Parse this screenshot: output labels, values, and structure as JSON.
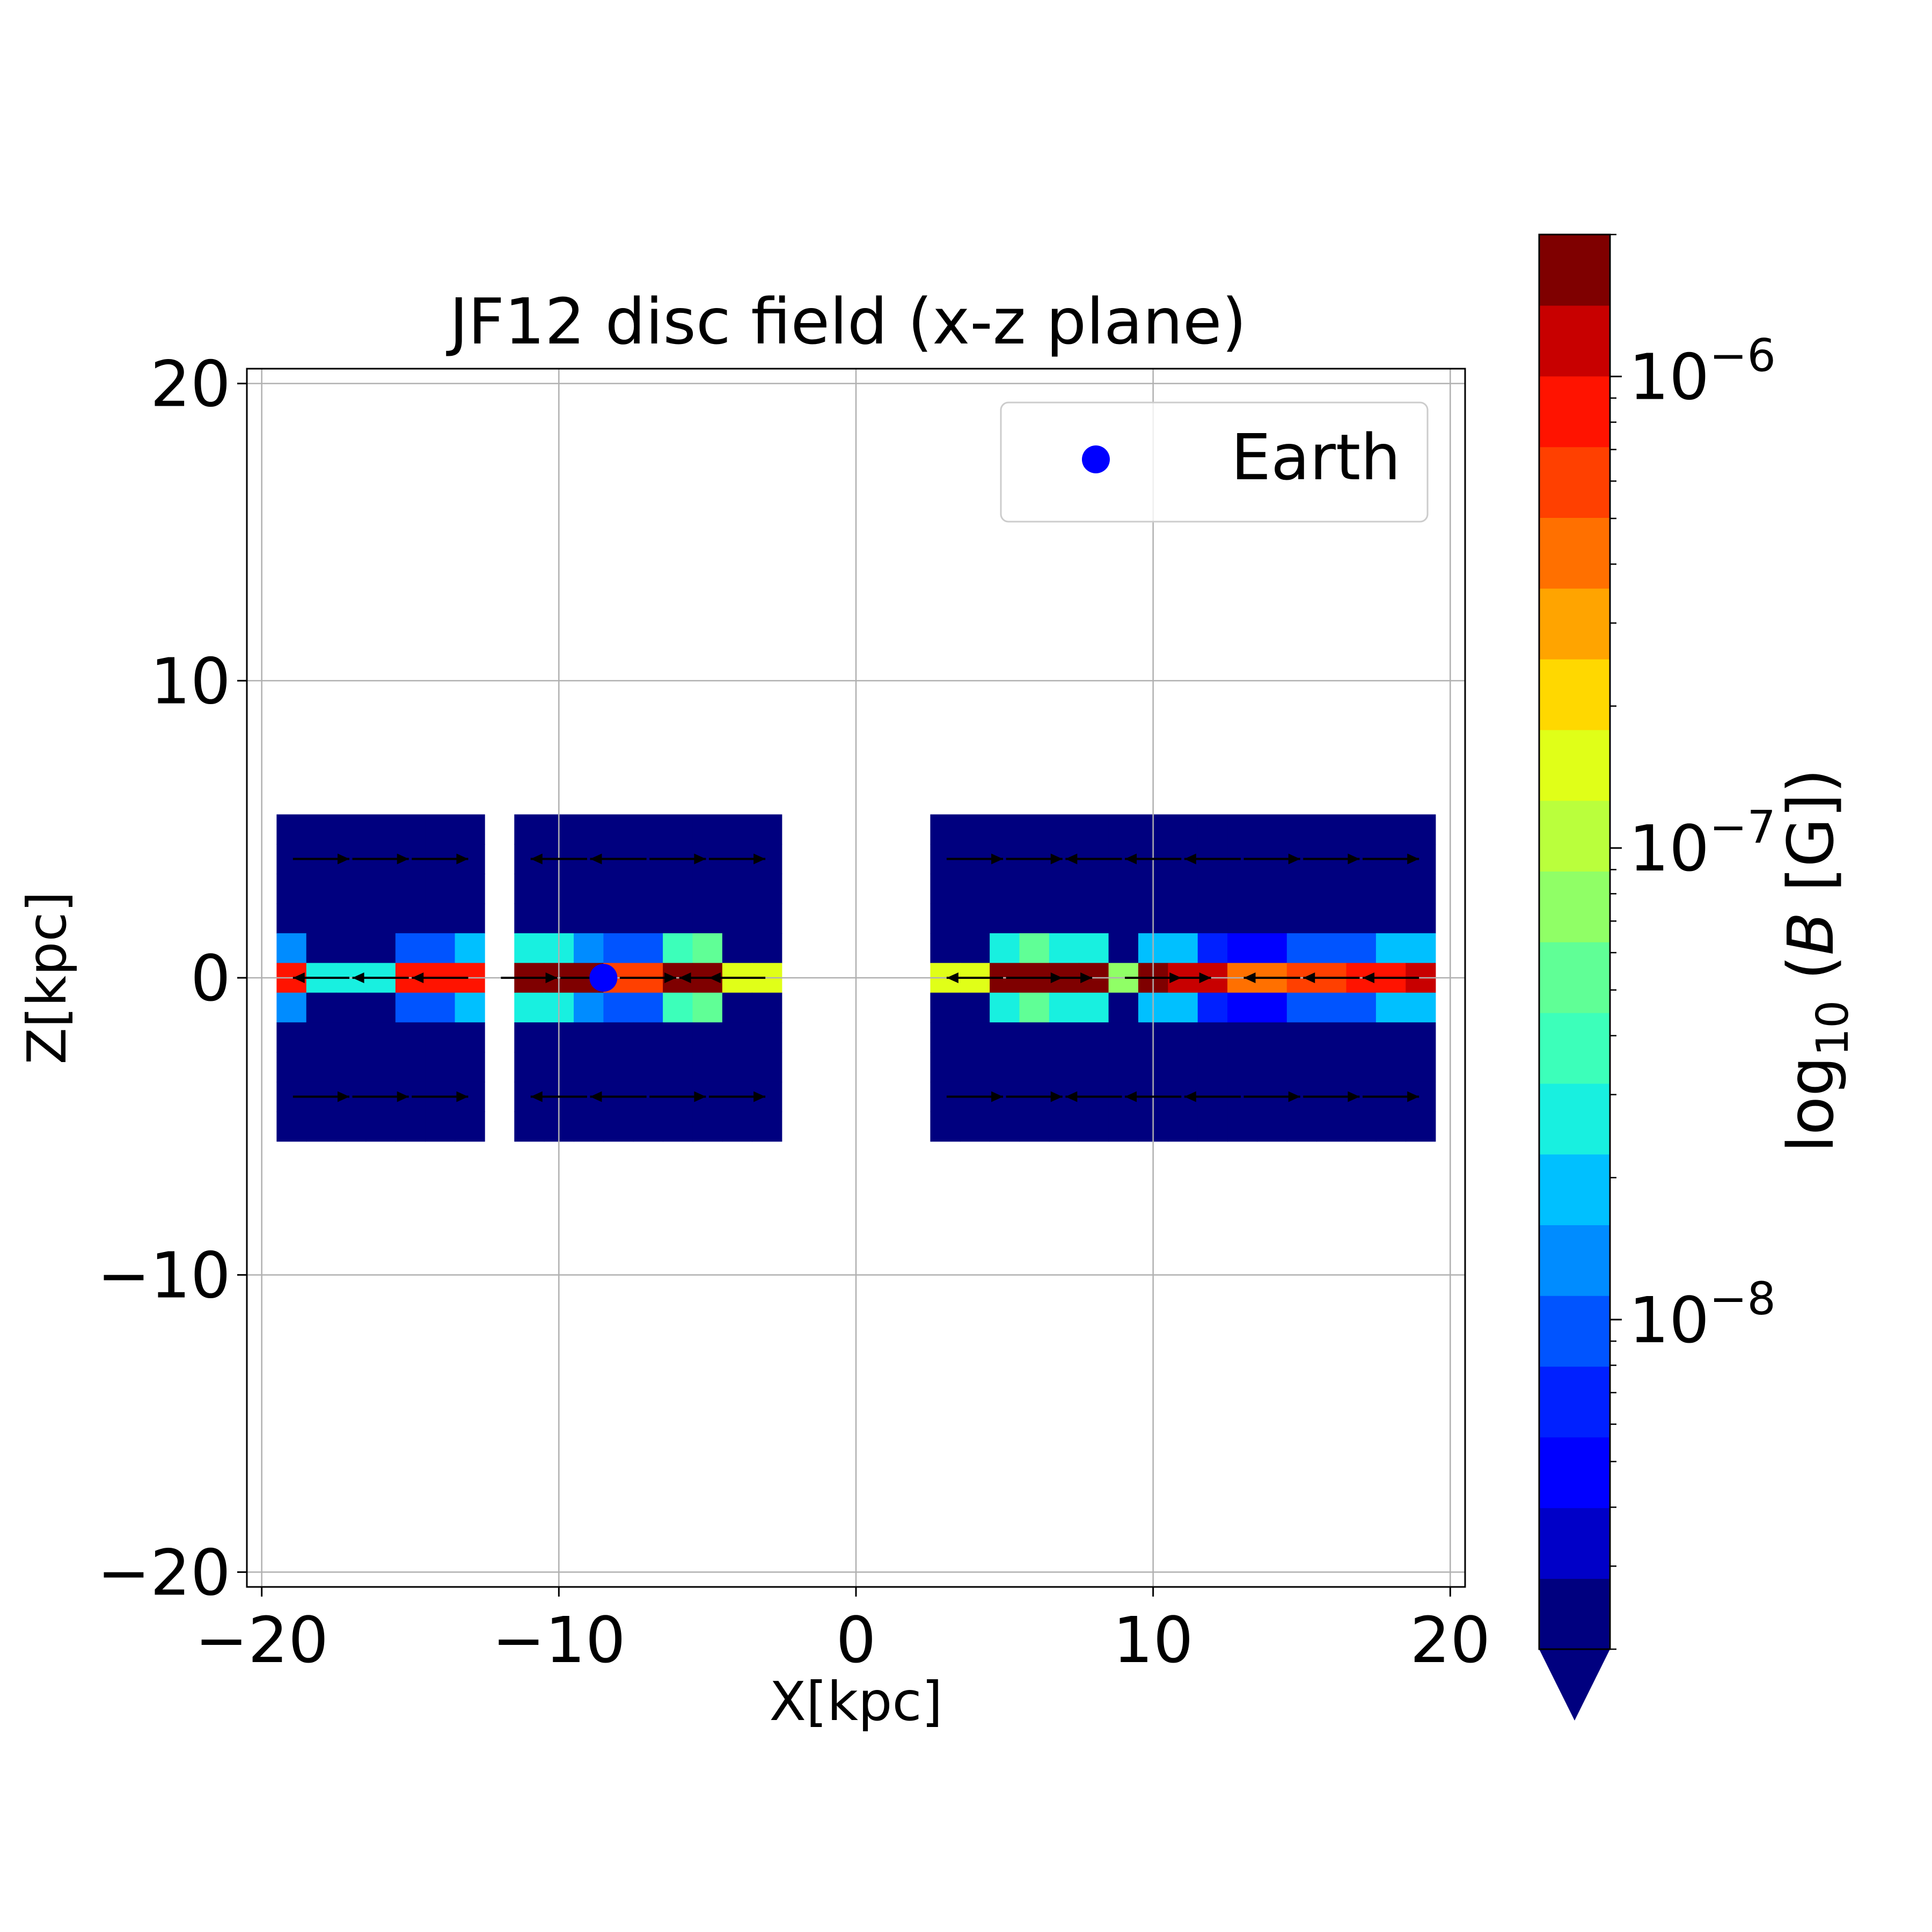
{
  "chart_data": {
    "type": "heatmap",
    "title": "JF12 disc field (x-z plane)",
    "xlabel": "X[kpc]",
    "ylabel": "Z[kpc]",
    "xlim": [
      -20.5,
      20.5
    ],
    "ylim": [
      -20.5,
      20.5
    ],
    "xticks": [
      -20,
      -10,
      0,
      10,
      20
    ],
    "yticks": [
      -20,
      -10,
      0,
      10,
      20
    ],
    "xtick_labels": [
      "−20",
      "−10",
      "0",
      "10",
      "20"
    ],
    "ytick_labels": [
      "−20",
      "−10",
      "0",
      "10",
      "20"
    ],
    "grid": true,
    "legend": {
      "placement": "top-right",
      "entries": [
        {
          "label": "Earth",
          "marker": "circle",
          "color": "#0000ff"
        }
      ]
    },
    "earth": {
      "x": -8.5,
      "z": 0
    },
    "cell": {
      "dx": 1.0,
      "dz": 1.0
    },
    "x_centers": [
      -19,
      -18,
      -17,
      -16,
      -15,
      -14,
      -13,
      -11,
      -10,
      -9,
      -8,
      -7,
      -6,
      -5,
      -4,
      -3,
      3,
      4,
      5,
      6,
      7,
      8,
      9,
      10,
      11,
      12,
      13,
      14,
      15,
      16,
      17,
      18,
      19
    ],
    "z_rows": [
      {
        "z": 5,
        "level": [
          0,
          0,
          0,
          0,
          0,
          0,
          0,
          0,
          0,
          0,
          0,
          0,
          0,
          0,
          0,
          0,
          0,
          0,
          0,
          0,
          0,
          0,
          0,
          0,
          0,
          0,
          0,
          0,
          0,
          0,
          0,
          0,
          0
        ]
      },
      {
        "z": 4,
        "level": [
          0,
          0,
          0,
          0,
          0,
          0,
          0,
          0,
          0,
          0,
          0,
          0,
          0,
          0,
          0,
          0,
          0,
          0,
          0,
          0,
          0,
          0,
          0,
          0,
          0,
          0,
          0,
          0,
          0,
          0,
          0,
          0,
          0
        ]
      },
      {
        "z": 3,
        "level": [
          0,
          0,
          0,
          0,
          0,
          0,
          0,
          0,
          0,
          0,
          0,
          0,
          0,
          0,
          0,
          0,
          0,
          0,
          0,
          0,
          0,
          0,
          0,
          0,
          0,
          0,
          0,
          0,
          0,
          0,
          0,
          0,
          0
        ]
      },
      {
        "z": 2,
        "level": [
          0,
          0,
          0,
          0,
          0,
          0,
          0,
          0,
          0,
          0,
          0,
          0,
          0,
          0,
          0,
          0,
          0,
          0,
          0,
          0,
          0,
          0,
          0,
          0,
          0,
          0,
          0,
          0,
          0,
          0,
          0,
          0,
          0
        ]
      },
      {
        "z": 1,
        "level": [
          5,
          0,
          0,
          0,
          4,
          4,
          6,
          7,
          7,
          5,
          4,
          4,
          8,
          9,
          0,
          0,
          0,
          0,
          7,
          9,
          7,
          7,
          0,
          6,
          6,
          3,
          2,
          2,
          4,
          4,
          4,
          6,
          6
        ]
      },
      {
        "z": 0,
        "level": [
          17,
          7,
          7,
          7,
          17,
          17,
          17,
          19,
          19,
          19,
          16,
          16,
          19,
          19,
          12,
          12,
          12,
          12,
          19,
          19,
          19,
          19,
          10,
          19,
          18,
          18,
          15,
          15,
          16,
          16,
          17,
          17,
          18
        ]
      },
      {
        "z": -1,
        "level": [
          5,
          0,
          0,
          0,
          4,
          4,
          6,
          7,
          7,
          5,
          4,
          4,
          8,
          9,
          0,
          0,
          0,
          0,
          7,
          9,
          7,
          7,
          0,
          6,
          6,
          3,
          2,
          2,
          4,
          4,
          4,
          6,
          6
        ]
      },
      {
        "z": -2,
        "level": [
          0,
          0,
          0,
          0,
          0,
          0,
          0,
          0,
          0,
          0,
          0,
          0,
          0,
          0,
          0,
          0,
          0,
          0,
          0,
          0,
          0,
          0,
          0,
          0,
          0,
          0,
          0,
          0,
          0,
          0,
          0,
          0,
          0
        ]
      },
      {
        "z": -3,
        "level": [
          0,
          0,
          0,
          0,
          0,
          0,
          0,
          0,
          0,
          0,
          0,
          0,
          0,
          0,
          0,
          0,
          0,
          0,
          0,
          0,
          0,
          0,
          0,
          0,
          0,
          0,
          0,
          0,
          0,
          0,
          0,
          0,
          0
        ]
      },
      {
        "z": -4,
        "level": [
          0,
          0,
          0,
          0,
          0,
          0,
          0,
          0,
          0,
          0,
          0,
          0,
          0,
          0,
          0,
          0,
          0,
          0,
          0,
          0,
          0,
          0,
          0,
          0,
          0,
          0,
          0,
          0,
          0,
          0,
          0,
          0,
          0
        ]
      },
      {
        "z": -5,
        "level": [
          0,
          0,
          0,
          0,
          0,
          0,
          0,
          0,
          0,
          0,
          0,
          0,
          0,
          0,
          0,
          0,
          0,
          0,
          0,
          0,
          0,
          0,
          0,
          0,
          0,
          0,
          0,
          0,
          0,
          0,
          0,
          0,
          0
        ]
      }
    ],
    "arrows": [
      {
        "z": 4,
        "x": [
          -19,
          -17,
          -15,
          -11,
          -9,
          -7,
          -5,
          3,
          5,
          7,
          9,
          11,
          13,
          15,
          17
        ],
        "dir": [
          1,
          1,
          1,
          -1,
          -1,
          1,
          1,
          1,
          1,
          -1,
          -1,
          -1,
          1,
          1,
          1
        ]
      },
      {
        "z": -4,
        "x": [
          -19,
          -17,
          -15,
          -11,
          -9,
          -7,
          -5,
          3,
          5,
          7,
          9,
          11,
          13,
          15,
          17
        ],
        "dir": [
          1,
          1,
          1,
          -1,
          -1,
          1,
          1,
          1,
          1,
          -1,
          -1,
          -1,
          1,
          1,
          1
        ]
      },
      {
        "z": 0,
        "x": [
          -18,
          -16,
          -14,
          -11,
          -9,
          -7,
          -5,
          -4,
          4,
          6,
          7,
          10,
          11,
          14,
          16,
          18
        ],
        "dir": [
          -1,
          -1,
          -1,
          1,
          1,
          1,
          -1,
          -1,
          -1,
          1,
          1,
          1,
          1,
          -1,
          -1,
          -1
        ]
      }
    ],
    "colorbar": {
      "label": "log",
      "label_sub": "10",
      "label_rest_open": " (",
      "label_var": "B",
      "label_rest_close": " [G])",
      "scale": "log",
      "range": [
        2e-09,
        2e-06
      ],
      "extend": "min",
      "tick_values": [
        1e-08,
        1e-07,
        1e-06
      ],
      "tick_base": "10",
      "tick_exponents": [
        "−8",
        "−7",
        "−6"
      ],
      "colors": [
        "#00007f",
        "#0000c8",
        "#0000ff",
        "#0020ff",
        "#0054ff",
        "#008cff",
        "#00c0ff",
        "#18f0e0",
        "#3cffba",
        "#60ff96",
        "#90ff66",
        "#baff3c",
        "#e0ff18",
        "#ffd800",
        "#ffa400",
        "#ff7000",
        "#ff4000",
        "#ff1300",
        "#c80000",
        "#7f0000"
      ]
    }
  }
}
